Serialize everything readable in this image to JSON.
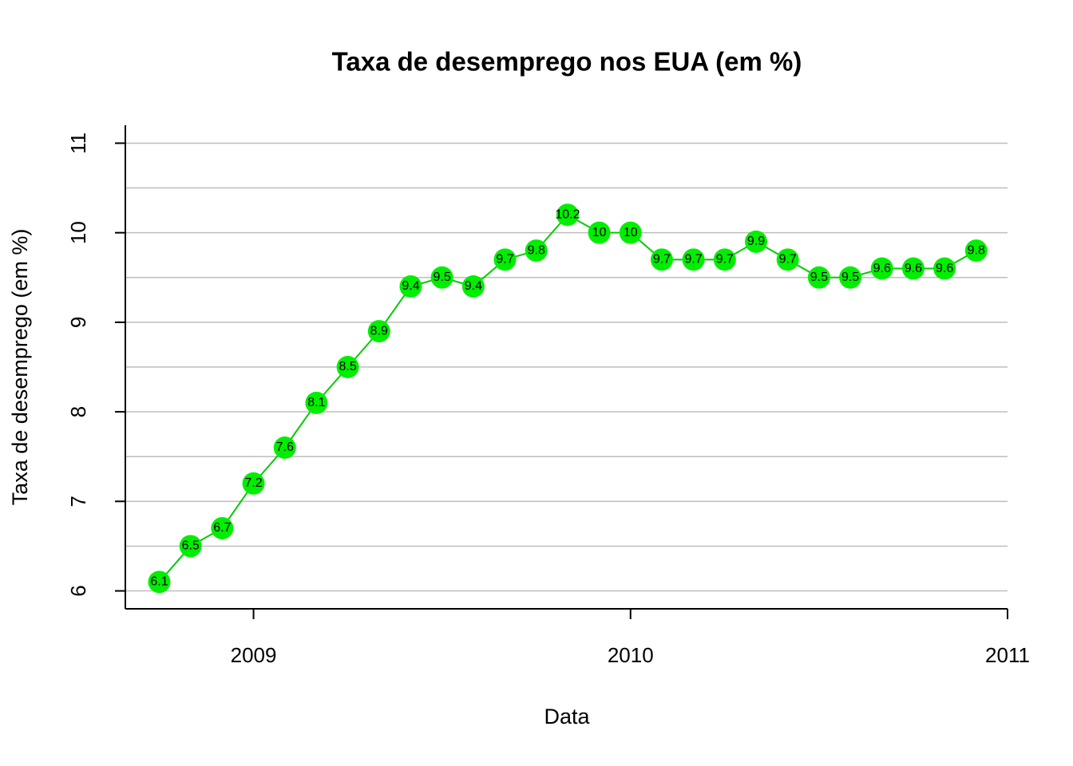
{
  "chart_data": {
    "type": "line",
    "title": "Taxa de desemprego nos EUA (em %)",
    "xlabel": "Data",
    "ylabel": "Taxa de desemprego (em %)",
    "x": [
      2008.75,
      2008.833,
      2008.917,
      2009.0,
      2009.083,
      2009.167,
      2009.25,
      2009.333,
      2009.417,
      2009.5,
      2009.583,
      2009.667,
      2009.75,
      2009.833,
      2009.917,
      2010.0,
      2010.083,
      2010.167,
      2010.25,
      2010.333,
      2010.417,
      2010.5,
      2010.583,
      2010.667,
      2010.75,
      2010.833,
      2010.917
    ],
    "series": [
      {
        "color": "#00ee00",
        "line_color": "#00cc00",
        "values": [
          6.1,
          6.5,
          6.7,
          7.2,
          7.6,
          8.1,
          8.5,
          8.9,
          9.4,
          9.5,
          9.4,
          9.7,
          9.8,
          10.2,
          10,
          10,
          9.7,
          9.7,
          9.7,
          9.9,
          9.7,
          9.5,
          9.5,
          9.6,
          9.6,
          9.6,
          9.8
        ]
      }
    ],
    "xlim": [
      2008.66,
      2011
    ],
    "xticks": [
      2009,
      2010,
      2011
    ],
    "ylim": [
      5.8,
      11.2
    ],
    "yticks": [
      6,
      7,
      8,
      9,
      10,
      11
    ],
    "minor_yticks": [
      6.5,
      7.5,
      8.5,
      9.5,
      10.5
    ],
    "grid": true
  }
}
